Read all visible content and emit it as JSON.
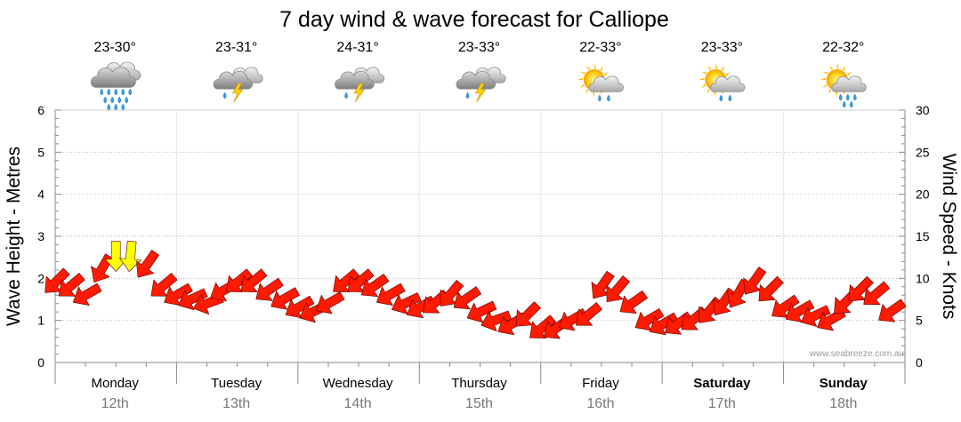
{
  "chart_data": {
    "type": "line",
    "title": "7 day wind & wave forecast for Calliope",
    "ylabel_left": "Wave Height - Metres",
    "ylabel_right": "Wind Speed - Knots",
    "ylim_left": [
      0,
      6
    ],
    "ylim_right": [
      0,
      30
    ],
    "yticks_left": [
      "0",
      "1",
      "2",
      "3",
      "4",
      "5",
      "6"
    ],
    "yticks_right": [
      "0",
      "5",
      "10",
      "15",
      "20",
      "25",
      "30"
    ],
    "grid": true,
    "watermark": "www.seabreeze.com.au",
    "days": [
      {
        "day": "Monday",
        "date": "12th",
        "temp": "23-30°",
        "icon": "rain-cloud-icon",
        "bold": false
      },
      {
        "day": "Tuesday",
        "date": "13th",
        "temp": "23-31°",
        "icon": "thunderstorm-icon",
        "bold": false
      },
      {
        "day": "Wednesday",
        "date": "14th",
        "temp": "24-31°",
        "icon": "thunderstorm-icon",
        "bold": false
      },
      {
        "day": "Thursday",
        "date": "15th",
        "temp": "23-33°",
        "icon": "thunderstorm-icon",
        "bold": false
      },
      {
        "day": "Friday",
        "date": "16th",
        "temp": "22-33°",
        "icon": "sun-cloud-drizzle-icon",
        "bold": false
      },
      {
        "day": "Saturday",
        "date": "17th",
        "temp": "23-33°",
        "icon": "sun-cloud-drizzle-icon",
        "bold": true
      },
      {
        "day": "Sunday",
        "date": "18th",
        "temp": "22-32°",
        "icon": "sun-cloud-rain-icon",
        "bold": true
      }
    ],
    "series": [
      {
        "name": "wind",
        "unit": "knots",
        "colors": {
          "normal": "#ff1a00",
          "strong": "#ffff00"
        },
        "strong_threshold_knots": 12,
        "x": [
          0.0,
          0.12,
          0.25,
          0.38,
          0.5,
          0.62,
          0.75,
          0.88,
          1.0,
          1.12,
          1.25,
          1.38,
          1.5,
          1.62,
          1.75,
          1.88,
          2.0,
          2.12,
          2.25,
          2.38,
          2.5,
          2.62,
          2.75,
          2.88,
          3.0,
          3.12,
          3.25,
          3.38,
          3.5,
          3.62,
          3.75,
          3.88,
          4.0,
          4.12,
          4.25,
          4.38,
          4.5,
          4.62,
          4.75,
          4.88,
          5.0,
          5.12,
          5.25,
          5.38,
          5.5,
          5.62,
          5.75,
          5.88,
          6.0,
          6.12,
          6.25,
          6.38,
          6.5,
          6.62,
          6.75,
          6.88
        ],
        "speed": [
          9.5,
          9,
          8,
          11,
          12.5,
          12.5,
          11.5,
          9,
          8,
          7.5,
          7,
          8.5,
          9.5,
          9.5,
          8.5,
          7.5,
          6.5,
          6,
          7,
          9.5,
          9.5,
          9,
          8,
          7,
          6.5,
          7,
          8,
          7.5,
          6,
          5,
          4.5,
          5.5,
          4,
          4,
          5,
          5.5,
          9,
          8.5,
          7,
          5,
          4.5,
          4.5,
          5,
          6,
          7,
          8,
          9.5,
          8.5,
          6.5,
          6,
          5.5,
          5,
          7,
          8.5,
          8,
          6
        ],
        "direction_deg": [
          135,
          140,
          150,
          120,
          90,
          95,
          125,
          140,
          150,
          155,
          160,
          150,
          140,
          140,
          145,
          150,
          150,
          155,
          150,
          140,
          140,
          145,
          150,
          155,
          150,
          140,
          130,
          145,
          155,
          160,
          150,
          135,
          140,
          145,
          150,
          140,
          125,
          130,
          145,
          150,
          150,
          145,
          140,
          130,
          125,
          120,
          125,
          135,
          145,
          150,
          155,
          150,
          135,
          135,
          140,
          145
        ]
      }
    ]
  }
}
